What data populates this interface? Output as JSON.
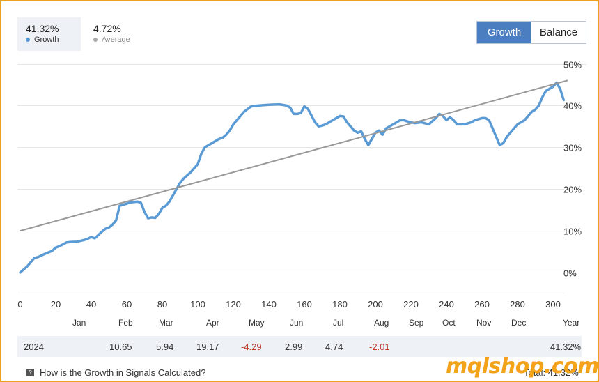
{
  "stats": {
    "growth": {
      "value": "41.32%",
      "label": "Growth",
      "color": "#5b9bd5"
    },
    "average": {
      "value": "4.72%",
      "label": "Average",
      "color": "#aaaaaa"
    }
  },
  "toggle": {
    "growth_label": "Growth",
    "balance_label": "Balance",
    "active": "Growth"
  },
  "chart_data": {
    "type": "line",
    "xlabel": "",
    "ylabel": "",
    "x_ticks": [
      "0",
      "20",
      "40",
      "60",
      "80",
      "100",
      "120",
      "140",
      "160",
      "180",
      "200",
      "220",
      "240",
      "260",
      "280",
      "300"
    ],
    "y_ticks": [
      "0%",
      "10%",
      "20%",
      "30%",
      "40%",
      "50%"
    ],
    "xlim": [
      0,
      313
    ],
    "ylim": [
      -5,
      50
    ],
    "series": [
      {
        "name": "Growth",
        "color": "#5b9bd5",
        "x": [
          0,
          4,
          8,
          10,
          14,
          18,
          20,
          22,
          26,
          28,
          32,
          36,
          38,
          40,
          42,
          44,
          46,
          48,
          50,
          52,
          54,
          56,
          60,
          62,
          66,
          68,
          70,
          72,
          74,
          76,
          78,
          80,
          82,
          84,
          86,
          88,
          90,
          92,
          96,
          100,
          102,
          104,
          106,
          108,
          110,
          112,
          114,
          116,
          118,
          120,
          124,
          126,
          130,
          134,
          140,
          146,
          150,
          152,
          154,
          156,
          158,
          160,
          162,
          166,
          168,
          170,
          172,
          174,
          180,
          182,
          184,
          188,
          190,
          192,
          194,
          196,
          200,
          202,
          204,
          206,
          208,
          210,
          212,
          214,
          216,
          218,
          220,
          222,
          226,
          230,
          234,
          236,
          238,
          240,
          242,
          244,
          246,
          250,
          254,
          256,
          260,
          262,
          264,
          266,
          270,
          272,
          274,
          276,
          278,
          280,
          284,
          286,
          288,
          290,
          292,
          294,
          296,
          300,
          302,
          304,
          306
        ],
        "values": [
          0,
          1.5,
          3.5,
          3.7,
          4.5,
          5.2,
          6,
          6.3,
          7.2,
          7.3,
          7.4,
          7.8,
          8.1,
          8.5,
          8.2,
          9.0,
          9.8,
          10.5,
          10.8,
          11.5,
          12.5,
          16.0,
          16.5,
          16.8,
          17.0,
          16.7,
          14.5,
          13.0,
          13.2,
          13.1,
          14.0,
          15.5,
          16.0,
          17.0,
          18.5,
          20.0,
          21.5,
          22.5,
          24.0,
          26.0,
          28.5,
          30.0,
          30.5,
          31.0,
          31.5,
          32.0,
          32.3,
          33.0,
          34.0,
          35.5,
          37.5,
          38.5,
          39.8,
          40.0,
          40.2,
          40.3,
          40.0,
          39.5,
          38.0,
          38.0,
          38.2,
          39.8,
          39.2,
          36.0,
          35.0,
          35.2,
          35.5,
          36.0,
          37.5,
          37.4,
          36.0,
          34.0,
          33.5,
          33.8,
          32.0,
          30.5,
          33.5,
          34.0,
          33.0,
          34.5,
          35.0,
          35.5,
          36.0,
          36.5,
          36.5,
          36.2,
          36.0,
          35.8,
          36.0,
          35.5,
          37.0,
          38.0,
          37.5,
          36.5,
          37.2,
          36.5,
          35.5,
          35.5,
          36.0,
          36.5,
          37.0,
          37.0,
          36.5,
          34.5,
          30.5,
          31.0,
          32.5,
          33.5,
          34.5,
          35.5,
          36.5,
          37.5,
          38.5,
          39.0,
          40.0,
          42.0,
          43.5,
          44.5,
          45.5,
          44.0,
          41.32
        ]
      },
      {
        "name": "Average",
        "color": "#999999",
        "x": [
          0,
          308
        ],
        "values": [
          10.0,
          46.0
        ]
      }
    ],
    "month_labels": [
      "Jan",
      "Feb",
      "Mar",
      "Apr",
      "May",
      "Jun",
      "Jul",
      "Aug",
      "Sep",
      "Oct",
      "Nov",
      "Dec",
      "Year"
    ]
  },
  "year_row": {
    "year": "2024",
    "values": [
      "",
      "10.65",
      "5.94",
      "19.17",
      "-4.29",
      "2.99",
      "4.74",
      "-2.01",
      "",
      "",
      "",
      "",
      "41.32%"
    ]
  },
  "footer": {
    "link": "How is the Growth in Signals Calculated?",
    "total": "Total: 41.32%"
  },
  "watermark": "mqlshop.com"
}
